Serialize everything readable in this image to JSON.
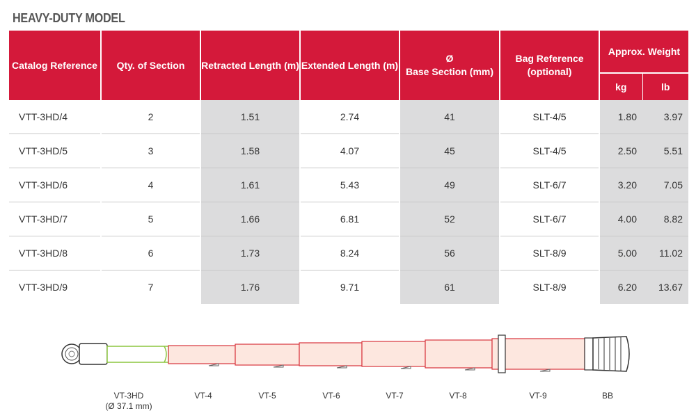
{
  "title": "HEAVY-DUTY MODEL",
  "table": {
    "headers": {
      "catalog": "Catalog Reference",
      "qty": "Qty. of Section",
      "retracted": "Retracted Length (m)",
      "extended": "Extended Length (m)",
      "diameter_symbol": "Ø",
      "base": "Base Section (mm)",
      "bag": "Bag Reference (optional)",
      "weight": "Approx. Weight",
      "kg": "kg",
      "lb": "lb"
    },
    "rows": [
      {
        "ref": "VTT-3HD/4",
        "qty": "2",
        "retracted": "1.51",
        "extended": "2.74",
        "base": "41",
        "bag": "SLT-4/5",
        "kg": "1.80",
        "lb": "3.97"
      },
      {
        "ref": "VTT-3HD/5",
        "qty": "3",
        "retracted": "1.58",
        "extended": "4.07",
        "base": "45",
        "bag": "SLT-4/5",
        "kg": "2.50",
        "lb": "5.51"
      },
      {
        "ref": "VTT-3HD/6",
        "qty": "4",
        "retracted": "1.61",
        "extended": "5.43",
        "base": "49",
        "bag": "SLT-6/7",
        "kg": "3.20",
        "lb": "7.05"
      },
      {
        "ref": "VTT-3HD/7",
        "qty": "5",
        "retracted": "1.66",
        "extended": "6.81",
        "base": "52",
        "bag": "SLT-6/7",
        "kg": "4.00",
        "lb": "8.82"
      },
      {
        "ref": "VTT-3HD/8",
        "qty": "6",
        "retracted": "1.73",
        "extended": "8.24",
        "base": "56",
        "bag": "SLT-8/9",
        "kg": "5.00",
        "lb": "11.02"
      },
      {
        "ref": "VTT-3HD/9",
        "qty": "7",
        "retracted": "1.76",
        "extended": "9.71",
        "base": "61",
        "bag": "SLT-8/9",
        "kg": "6.20",
        "lb": "13.67"
      }
    ]
  },
  "diagram": {
    "labels": [
      {
        "name": "VT-3HD",
        "sub": "(Ø 37.1 mm)"
      },
      {
        "name": "VT-4"
      },
      {
        "name": "VT-5"
      },
      {
        "name": "VT-6"
      },
      {
        "name": "VT-7"
      },
      {
        "name": "VT-8"
      },
      {
        "name": "VT-9"
      },
      {
        "name": "BB"
      }
    ],
    "colors": {
      "section_fill": "#fde7df",
      "section_stroke": "#d8343c",
      "tip_stroke": "#8cc63f",
      "head_stroke": "#333333"
    }
  }
}
